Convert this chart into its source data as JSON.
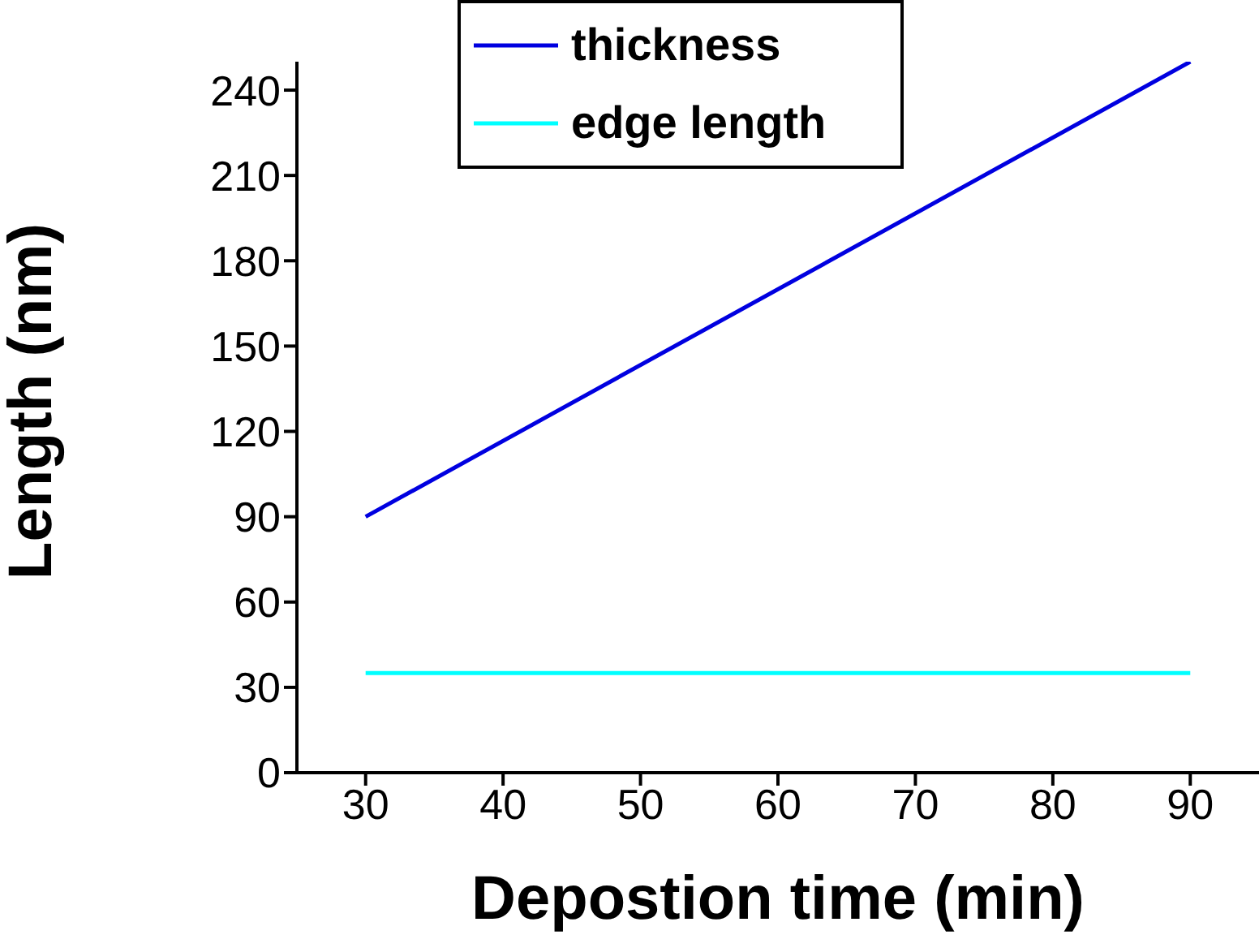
{
  "chart_data": {
    "type": "line",
    "xlabel": "Depostion time (min)",
    "ylabel": "Length (nm)",
    "x": [
      30,
      90
    ],
    "series": [
      {
        "name": "thickness",
        "color": "#0000e0",
        "values": [
          90,
          250
        ]
      },
      {
        "name": "edge length",
        "color": "#00ffff",
        "values": [
          35,
          35
        ]
      }
    ],
    "xlim": [
      25,
      95
    ],
    "xticks": [
      30,
      40,
      50,
      60,
      70,
      80,
      90
    ],
    "ylim": [
      0,
      250
    ],
    "yticks": [
      0,
      30,
      60,
      90,
      120,
      150,
      180,
      210,
      240
    ],
    "grid": false,
    "legend": "top",
    "marker": "none",
    "line_style": "solid"
  }
}
